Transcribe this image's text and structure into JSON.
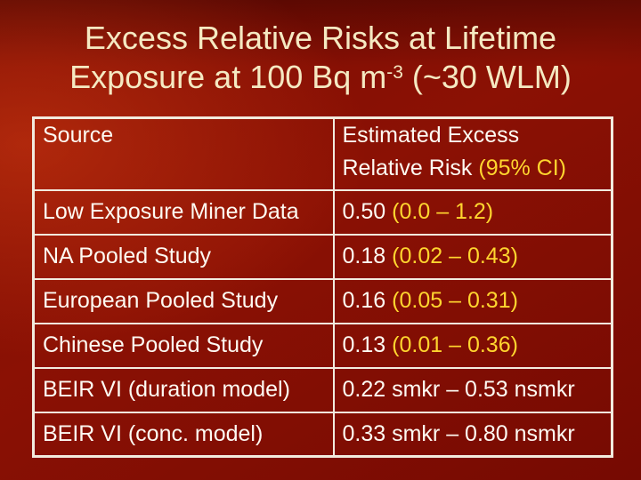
{
  "title": {
    "line1": "Excess Relative Risks at Lifetime",
    "line2_prefix": "Exposure at 100 Bq m",
    "line2_sup": "-3",
    "line2_suffix": " (~30 WLM)"
  },
  "table": {
    "header": {
      "source": "Source",
      "estimate_line1": "Estimated Excess",
      "estimate_line2": "Relative Risk",
      "estimate_ci": "(95% CI)"
    },
    "rows": [
      {
        "source": "Low Exposure Miner Data",
        "value": "0.50",
        "ci": "(0.0 – 1.2)"
      },
      {
        "source": "NA Pooled Study",
        "value": "0.18",
        "ci": "(0.02 – 0.43)"
      },
      {
        "source": "European Pooled Study",
        "value": "0.16",
        "ci": "(0.05 – 0.31)"
      },
      {
        "source": "Chinese Pooled Study",
        "value": "0.13",
        "ci": "(0.01 – 0.36)"
      },
      {
        "source": "BEIR VI (duration model)",
        "value": "0.22 smkr – 0.53 nsmkr",
        "ci": ""
      },
      {
        "source": "BEIR VI (conc. model)",
        "value": "0.33 smkr – 0.80 nsmkr",
        "ci": ""
      }
    ]
  },
  "colors": {
    "background": "#7b0c03",
    "background_dark": "#670a03",
    "background_highlight": "#9c1a08",
    "title_text": "#f5e9c2",
    "table_text": "#fefaf2",
    "accent_text": "#ffd52f",
    "table_border": "#f2ebde"
  }
}
